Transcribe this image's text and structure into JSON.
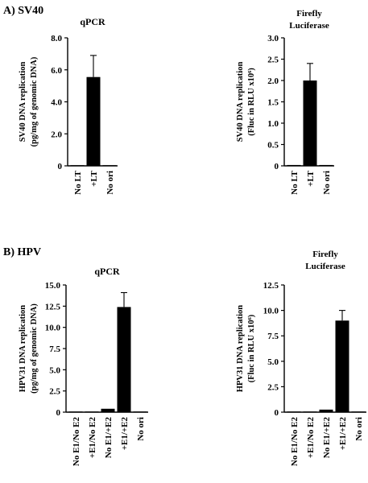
{
  "panels": {
    "a": {
      "label": "A) SV40"
    },
    "b": {
      "label": "B) HPV"
    }
  },
  "colors": {
    "bar": "#000000",
    "axis": "#000000"
  },
  "chart_data": [
    {
      "type": "bar",
      "panel": "A) SV40",
      "title": "qPCR",
      "title_lines": [
        "qPCR"
      ],
      "ylabel_lines": [
        "SV40 DNA replication",
        "(pg/mg of genomic DNA)"
      ],
      "categories": [
        "No LT",
        "+LT",
        "No ori"
      ],
      "values": [
        0,
        5.55,
        0
      ],
      "errors": [
        0,
        1.35,
        0
      ],
      "ylim": [
        0,
        8
      ],
      "yticks": [
        "0",
        "2.0",
        "4.0",
        "6.0",
        "8.0"
      ],
      "grid": false
    },
    {
      "type": "bar",
      "panel": "A) SV40",
      "title": "Firefly Luciferase",
      "title_lines": [
        "Firefly",
        "Luciferase"
      ],
      "ylabel_lines": [
        "SV40 DNA replication",
        "(Fluc in RLU x10⁶)"
      ],
      "categories": [
        "No LT",
        "+LT",
        "No ori"
      ],
      "values": [
        0.02,
        2.0,
        0.02
      ],
      "errors": [
        0,
        0.4,
        0
      ],
      "ylim": [
        0,
        3
      ],
      "yticks": [
        "0",
        "0.5",
        "1.0",
        "1.5",
        "2.0",
        "2.5",
        "3.0"
      ],
      "grid": false
    },
    {
      "type": "bar",
      "panel": "B) HPV",
      "title": "qPCR",
      "title_lines": [
        "qPCR"
      ],
      "ylabel_lines": [
        "HPV31 DNA replication",
        "(pg/mg of genomic DNA)"
      ],
      "categories": [
        "No E1/No E2",
        "+E1/No E2",
        "No E1/+E2",
        "+E1/+E2",
        "No ori"
      ],
      "values": [
        0,
        0.05,
        0.4,
        12.4,
        0.05
      ],
      "errors": [
        0,
        0,
        0,
        1.7,
        0
      ],
      "ylim": [
        0,
        15
      ],
      "yticks": [
        "0",
        "2.5",
        "5.0",
        "7.5",
        "10.0",
        "12.5",
        "15.0"
      ],
      "grid": false
    },
    {
      "type": "bar",
      "panel": "B) HPV",
      "title": "Firefly Luciferase",
      "title_lines": [
        "Firefly",
        "Luciferase"
      ],
      "ylabel_lines": [
        "HPV31 DNA replication",
        "(Fluc in RLU x10⁶)"
      ],
      "categories": [
        "No E1/No E2",
        "+E1/No E2",
        "No E1/+E2",
        "+E1/+E2",
        "No ori"
      ],
      "values": [
        0,
        0,
        0.25,
        9.0,
        0.03
      ],
      "errors": [
        0,
        0,
        0,
        1.0,
        0
      ],
      "ylim": [
        0,
        12.5
      ],
      "yticks": [
        "0",
        "2.5",
        "5.0",
        "7.5",
        "10.0",
        "12.5"
      ],
      "grid": false
    }
  ]
}
